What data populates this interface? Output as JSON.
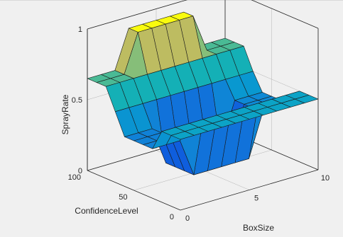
{
  "chart_data": {
    "type": "surface",
    "xlabel": "BoxSize",
    "ylabel": "ConfidenceLevel",
    "zlabel": "SprayRate",
    "xlim": [
      0,
      10
    ],
    "ylim": [
      0,
      100
    ],
    "zlim": [
      0,
      1
    ],
    "x_ticks": [
      "0",
      "5",
      "10"
    ],
    "y_ticks": [
      "0",
      "50",
      "100"
    ],
    "z_ticks": [
      "0",
      "0.5",
      "1"
    ],
    "x": [
      0,
      1,
      2,
      3,
      4,
      5,
      6,
      7,
      8,
      9,
      10
    ],
    "y": [
      0,
      10,
      20,
      30,
      40,
      50,
      60,
      70,
      80,
      90,
      100
    ],
    "z": [
      [
        0.5,
        0.5,
        0.5,
        0.5,
        0.5,
        0.5,
        0.5,
        0.5,
        0.5,
        0.5,
        0.5
      ],
      [
        0.5,
        0.5,
        0.5,
        0.5,
        0.5,
        0.5,
        0.5,
        0.5,
        0.5,
        0.5,
        0.5
      ],
      [
        0.5,
        0.5,
        0.5,
        0.5,
        0.5,
        0.5,
        0.5,
        0.5,
        0.5,
        0.5,
        0.5
      ],
      [
        0.35,
        0.35,
        0.35,
        0.08,
        0.08,
        0.08,
        0.08,
        0.08,
        0.38,
        0.38,
        0.38
      ],
      [
        0.35,
        0.35,
        0.35,
        0.08,
        0.08,
        0.08,
        0.08,
        0.08,
        0.38,
        0.38,
        0.38
      ],
      [
        0.35,
        0.35,
        0.35,
        0.08,
        0.08,
        0.08,
        0.08,
        0.08,
        0.38,
        0.38,
        0.38
      ],
      [
        0.35,
        0.35,
        0.35,
        0.08,
        0.08,
        0.08,
        0.08,
        0.08,
        0.38,
        0.38,
        0.38
      ],
      [
        0.5,
        0.5,
        0.5,
        0.5,
        0.5,
        0.5,
        0.5,
        0.5,
        0.5,
        0.5,
        0.5
      ],
      [
        0.65,
        0.65,
        0.65,
        0.65,
        0.65,
        0.65,
        0.65,
        0.65,
        0.65,
        0.65,
        0.65
      ],
      [
        0.65,
        0.65,
        0.65,
        0.92,
        0.92,
        0.92,
        0.92,
        0.92,
        0.65,
        0.65,
        0.65
      ],
      [
        0.65,
        0.65,
        0.65,
        0.92,
        0.92,
        0.92,
        0.92,
        0.92,
        0.65,
        0.65,
        0.65
      ]
    ],
    "colormap": "parula",
    "grid": true,
    "box": true
  }
}
